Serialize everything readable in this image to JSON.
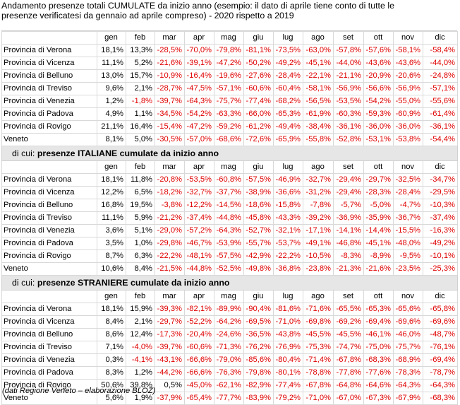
{
  "title_lines": [
    "Andamento presenze totali CUMULATE da inizio anno (esempio: il dato di aprile tiene conto di tutte le",
    "presenze verificatesi da gennaio ad aprile compreso) - 2020 rispetto a 2019"
  ],
  "months": [
    "gen",
    "feb",
    "mar",
    "apr",
    "mag",
    "giu",
    "lug",
    "ago",
    "set",
    "ott",
    "nov",
    "dic"
  ],
  "sections": [
    {
      "label_prefix": "",
      "label_bold": "",
      "rows": [
        {
          "name": "Provincia di Verona",
          "values": [
            "18,1%",
            "13,3%",
            "-28,5%",
            "-70,0%",
            "-79,8%",
            "-81,1%",
            "-73,5%",
            "-63,0%",
            "-57,8%",
            "-57,6%",
            "-58,1%",
            "-58,4%"
          ]
        },
        {
          "name": "Provincia di Vicenza",
          "values": [
            "11,1%",
            "5,2%",
            "-21,6%",
            "-39,1%",
            "-47,2%",
            "-50,2%",
            "-49,2%",
            "-45,1%",
            "-44,0%",
            "-43,6%",
            "-43,6%",
            "-44,0%"
          ]
        },
        {
          "name": "Provincia di Belluno",
          "values": [
            "13,0%",
            "15,7%",
            "-10,9%",
            "-16,4%",
            "-19,6%",
            "-27,6%",
            "-28,4%",
            "-22,1%",
            "-21,1%",
            "-20,9%",
            "-20,6%",
            "-24,8%"
          ]
        },
        {
          "name": "Provincia di Treviso",
          "values": [
            "9,6%",
            "2,1%",
            "-28,7%",
            "-47,5%",
            "-57,1%",
            "-60,6%",
            "-60,4%",
            "-58,1%",
            "-56,9%",
            "-56,6%",
            "-56,9%",
            "-57,1%"
          ]
        },
        {
          "name": "Provincia di Venezia",
          "values": [
            "1,2%",
            "-1,8%",
            "-39,7%",
            "-64,3%",
            "-75,7%",
            "-77,4%",
            "-68,2%",
            "-56,5%",
            "-53,5%",
            "-54,2%",
            "-55,0%",
            "-55,6%"
          ]
        },
        {
          "name": "Provincia di Padova",
          "values": [
            "4,9%",
            "1,1%",
            "-34,5%",
            "-54,2%",
            "-63,3%",
            "-66,0%",
            "-65,3%",
            "-61,9%",
            "-60,3%",
            "-59,3%",
            "-60,9%",
            "-61,4%"
          ]
        },
        {
          "name": "Provincia di Rovigo",
          "values": [
            "21,1%",
            "16,4%",
            "-15,4%",
            "-47,2%",
            "-59,2%",
            "-61,2%",
            "-49,4%",
            "-38,4%",
            "-36,1%",
            "-36,0%",
            "-36,0%",
            "-36,1%"
          ]
        },
        {
          "name": "Veneto",
          "values": [
            "8,1%",
            "5,0%",
            "-30,5%",
            "-57,0%",
            "-68,6%",
            "-72,6%",
            "-65,9%",
            "-55,8%",
            "-52,8%",
            "-53,1%",
            "-53,8%",
            "-54,4%"
          ]
        }
      ]
    },
    {
      "label_prefix": "di cui: ",
      "label_bold": "presenze ITALIANE cumulate da inizio anno",
      "rows": [
        {
          "name": "Provincia di Verona",
          "values": [
            "18,1%",
            "11,8%",
            "-20,8%",
            "-53,5%",
            "-60,8%",
            "-57,5%",
            "-46,9%",
            "-32,7%",
            "-29,4%",
            "-29,7%",
            "-32,5%",
            "-34,7%"
          ]
        },
        {
          "name": "Provincia di Vicenza",
          "values": [
            "12,2%",
            "6,5%",
            "-18,2%",
            "-32,7%",
            "-37,7%",
            "-38,9%",
            "-36,6%",
            "-31,2%",
            "-29,4%",
            "-28,3%",
            "-28,4%",
            "-29,5%"
          ]
        },
        {
          "name": "Provincia di Belluno",
          "values": [
            "16,8%",
            "19,5%",
            "-3,8%",
            "-12,2%",
            "-14,5%",
            "-18,6%",
            "-15,8%",
            "-7,8%",
            "-5,7%",
            "-5,0%",
            "-4,7%",
            "-10,3%"
          ]
        },
        {
          "name": "Provincia di Treviso",
          "values": [
            "11,1%",
            "5,9%",
            "-21,2%",
            "-37,4%",
            "-44,8%",
            "-45,8%",
            "-43,3%",
            "-39,2%",
            "-36,9%",
            "-35,9%",
            "-36,7%",
            "-37,4%"
          ]
        },
        {
          "name": "Provincia di Venezia",
          "values": [
            "3,6%",
            "5,1%",
            "-29,0%",
            "-57,2%",
            "-64,3%",
            "-52,7%",
            "-32,1%",
            "-17,1%",
            "-14,1%",
            "-14,4%",
            "-15,5%",
            "-16,3%"
          ]
        },
        {
          "name": "Provincia di Padova",
          "values": [
            "3,5%",
            "1,0%",
            "-29,8%",
            "-46,7%",
            "-53,9%",
            "-55,7%",
            "-53,7%",
            "-49,1%",
            "-46,8%",
            "-45,1%",
            "-48,0%",
            "-49,2%"
          ]
        },
        {
          "name": "Provincia di Rovigo",
          "values": [
            "8,7%",
            "6,3%",
            "-22,2%",
            "-48,1%",
            "-57,5%",
            "-42,9%",
            "-22,2%",
            "-10,5%",
            "-8,3%",
            "-8,9%",
            "-9,5%",
            "-10,1%"
          ]
        },
        {
          "name": "Veneto",
          "values": [
            "10,6%",
            "8,4%",
            "-21,5%",
            "-44,8%",
            "-52,5%",
            "-49,8%",
            "-36,8%",
            "-23,8%",
            "-21,3%",
            "-21,6%",
            "-23,5%",
            "-25,3%"
          ]
        }
      ]
    },
    {
      "label_prefix": "di cui: ",
      "label_bold": "presenze STRANIERE cumulate da inizio anno",
      "rows": [
        {
          "name": "Provincia di Verona",
          "values": [
            "18,1%",
            "15,9%",
            "-39,3%",
            "-82,1%",
            "-89,9%",
            "-90,4%",
            "-81,6%",
            "-71,6%",
            "-65,5%",
            "-65,3%",
            "-65,6%",
            "-65,8%"
          ]
        },
        {
          "name": "Provincia di Vicenza",
          "values": [
            "8,4%",
            "2,1%",
            "-29,7%",
            "-52,2%",
            "-64,2%",
            "-69,5%",
            "-71,0%",
            "-69,8%",
            "-69,2%",
            "-69,4%",
            "-69,6%",
            "-69,6%"
          ]
        },
        {
          "name": "Provincia di Belluno",
          "values": [
            "8,6%",
            "12,4%",
            "-17,3%",
            "-20,4%",
            "-24,6%",
            "-36,5%",
            "-43,8%",
            "-45,5%",
            "-45,5%",
            "-46,1%",
            "-46,0%",
            "-48,7%"
          ]
        },
        {
          "name": "Provincia di Treviso",
          "values": [
            "7,1%",
            "-4,0%",
            "-39,7%",
            "-60,6%",
            "-71,3%",
            "-76,2%",
            "-76,9%",
            "-75,3%",
            "-74,7%",
            "-75,0%",
            "-75,7%",
            "-76,1%"
          ]
        },
        {
          "name": "Provincia di Venezia",
          "values": [
            "0,3%",
            "-4,1%",
            "-43,1%",
            "-66,6%",
            "-79,0%",
            "-85,6%",
            "-80,4%",
            "-71,4%",
            "-67,8%",
            "-68,3%",
            "-68,9%",
            "-69,4%"
          ]
        },
        {
          "name": "Provincia di Padova",
          "values": [
            "8,3%",
            "1,2%",
            "-44,2%",
            "-66,6%",
            "-76,3%",
            "-79,8%",
            "-80,1%",
            "-78,8%",
            "-77,8%",
            "-77,6%",
            "-78,3%",
            "-78,7%"
          ]
        },
        {
          "name": "Provincia di Rovigo",
          "values": [
            "50,6%",
            "39,8%",
            "0,5%",
            "-45,0%",
            "-62,1%",
            "-82,9%",
            "-77,4%",
            "-67,8%",
            "-64,8%",
            "-64,6%",
            "-64,3%",
            "-64,3%"
          ]
        },
        {
          "name": "Veneto",
          "values": [
            "5,6%",
            "1,9%",
            "-37,9%",
            "-65,4%",
            "-77,7%",
            "-83,9%",
            "-79,2%",
            "-71,0%",
            "-67,0%",
            "-67,3%",
            "-67,9%",
            "-68,3%"
          ]
        }
      ]
    }
  ],
  "footer": "(dati Regione Veneto – elaborazione BLOZ)",
  "colors": {
    "negative": "#e00000",
    "positive": "#000000",
    "section_band": "#e6e6e6"
  }
}
